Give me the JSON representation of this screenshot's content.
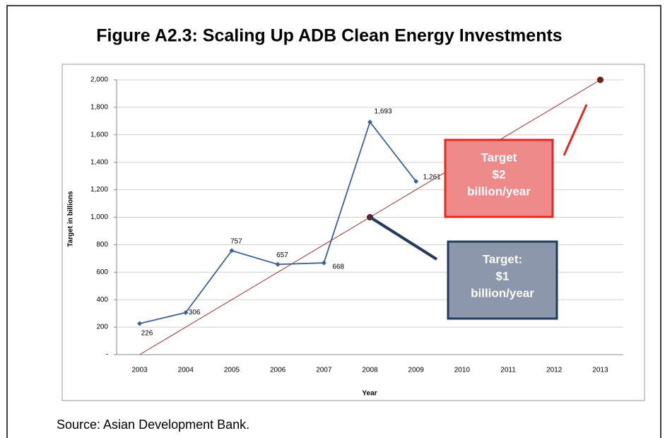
{
  "chart_data": {
    "type": "line",
    "title": "Figure A2.3: Scaling Up ADB Clean Energy Investments",
    "x_label": "Year",
    "y_label": "Target in billions",
    "source": "Source: Asian Development Bank.",
    "categories": [
      "2003",
      "2004",
      "2005",
      "2006",
      "2007",
      "2008",
      "2009",
      "2010",
      "2011",
      "2012",
      "2013"
    ],
    "ylim": [
      0,
      2000
    ],
    "yticks": [
      {
        "value": 0,
        "label": "-"
      },
      200,
      400,
      600,
      800,
      {
        "value": 1000,
        "label": "1,000"
      },
      {
        "value": 1200,
        "label": "1,200"
      },
      {
        "value": 1400,
        "label": "1,400"
      },
      {
        "value": 1600,
        "label": "1,600"
      },
      {
        "value": 1800,
        "label": "1,800"
      },
      {
        "value": 2000,
        "label": "2,000"
      }
    ],
    "grid": true,
    "series": [
      {
        "color": "#3b6196",
        "values": [
          226,
          306,
          757,
          657,
          668,
          1693,
          1261,
          null,
          null,
          null,
          null
        ],
        "value_labels": [
          "226",
          "306",
          "757",
          "657",
          "668",
          "1,693",
          "1,261",
          null,
          null,
          null,
          null
        ]
      },
      {
        "color": "#a3322c",
        "values": [
          0,
          200,
          400,
          600,
          800,
          1000,
          1200,
          1400,
          1600,
          1800,
          2000
        ],
        "marked_points": [
          5,
          10
        ]
      }
    ],
    "annotations": [
      {
        "lines": [
          "Target",
          "$2",
          "billion/year"
        ],
        "color": "#e8281e",
        "fill": "#ee8a8a"
      },
      {
        "lines": [
          "Target:",
          "$1",
          "billion/year"
        ],
        "color": "#243a5e",
        "fill": "#8c97ab"
      }
    ]
  }
}
